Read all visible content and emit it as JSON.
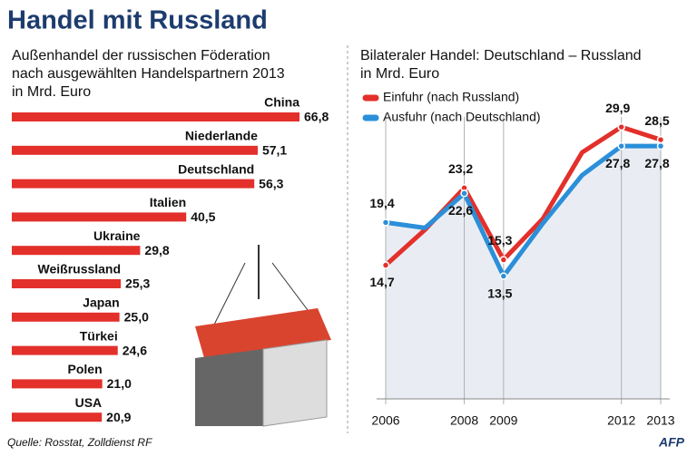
{
  "title": "Handel mit Russland",
  "source": "Quelle: Rosstat, Zolldienst RF",
  "logo": "AFP",
  "chart_data": [
    {
      "type": "hbar",
      "subtitle": [
        "Außenhandel der russischen Föderation",
        "nach ausgewählten Handelspartnern 2013",
        "in Mrd. Euro"
      ],
      "categories": [
        "China",
        "Niederlande",
        "Deutschland",
        "Italien",
        "Ukraine",
        "Weißrussland",
        "Japan",
        "Türkei",
        "Polen",
        "USA"
      ],
      "values": [
        66.8,
        57.1,
        56.3,
        40.5,
        29.8,
        25.3,
        25.0,
        24.6,
        21.0,
        20.9
      ],
      "value_labels": [
        "66,8",
        "57,1",
        "56,3",
        "40,5",
        "29,8",
        "25,3",
        "25,0",
        "24,6",
        "21,0",
        "20,9"
      ],
      "color": "#e3302b"
    },
    {
      "type": "line",
      "subtitle": [
        "Bilateraler Handel: Deutschland – Russland",
        "in Mrd. Euro"
      ],
      "x": [
        2006,
        2007,
        2008,
        2009,
        2010,
        2011,
        2012,
        2013
      ],
      "xlim": [
        2006,
        2013
      ],
      "xticks": [
        2006,
        2008,
        2009,
        2012,
        2013
      ],
      "ylim": [
        0,
        32
      ],
      "series": [
        {
          "name": "Einfuhr (nach Russland)",
          "color": "#e3302b",
          "values": [
            14.7,
            18.6,
            23.2,
            15.3,
            19.8,
            27.1,
            29.9,
            28.5
          ],
          "value_labels": [
            "14,7",
            null,
            "23,2",
            "15,3",
            null,
            null,
            "29,9",
            "28,5"
          ]
        },
        {
          "name": "Ausfuhr (nach Deutschland)",
          "color": "#2b8fd9",
          "values": [
            19.4,
            18.8,
            22.6,
            13.5,
            19.3,
            24.6,
            27.8,
            27.8
          ],
          "value_labels": [
            "19,4",
            null,
            "22,6",
            "13,5",
            null,
            null,
            "27,8",
            "27,8"
          ]
        }
      ],
      "area_color": "#e9edf3"
    }
  ]
}
